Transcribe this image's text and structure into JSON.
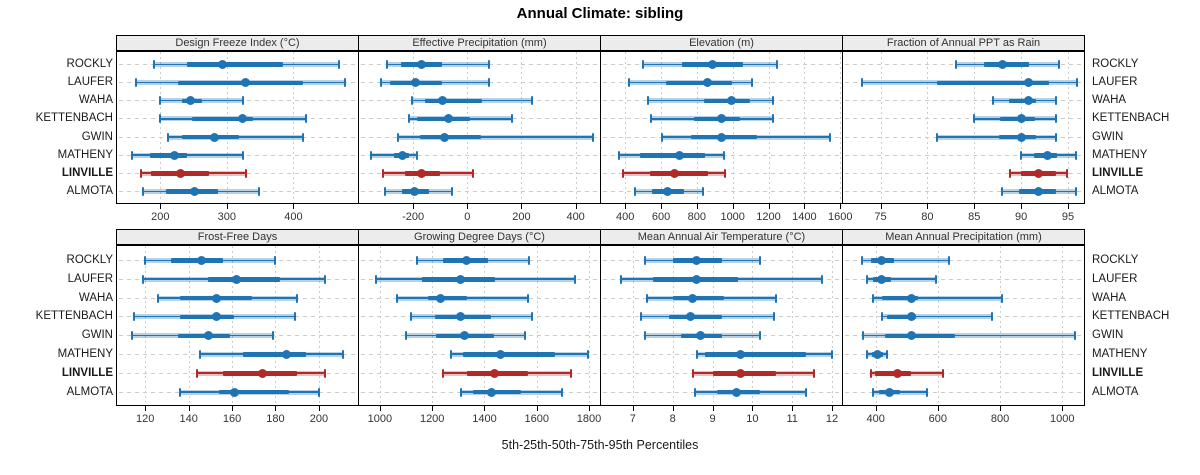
{
  "title": "Annual Climate: sibling",
  "caption": "5th-25th-50th-75th-95th Percentiles",
  "colors": {
    "primary": "#1f74b4",
    "primary_light": "rgba(31,116,180,0.32)",
    "highlight": "#b02a27",
    "highlight_light": "rgba(176,42,39,0.30)",
    "grid": "#cccccc",
    "strip_bg": "#ececec",
    "border": "#000000"
  },
  "chart_data": {
    "type": "dotplot-interval",
    "title": "Annual Climate: sibling",
    "caption": "5th-25th-50th-75th-95th Percentiles",
    "percentiles": [
      5,
      25,
      50,
      75,
      95
    ],
    "legend_position": "none",
    "grid": "on",
    "sites": [
      "ROCKLY",
      "LAUFER",
      "WAHA",
      "KETTENBACH",
      "GWIN",
      "MATHENY",
      "LINVILLE",
      "ALMOTA"
    ],
    "highlight_site": "LINVILLE",
    "panels": [
      {
        "title": "Design Freeze Index (°C)",
        "row": 0,
        "col": 0,
        "ticks": [
          200,
          300,
          400
        ],
        "xlim": [
          135,
          497
        ],
        "values": [
          [
            190,
            240,
            293,
            384,
            468
          ],
          [
            164,
            226,
            328,
            414,
            477
          ],
          [
            199,
            233,
            245,
            262,
            324
          ],
          [
            199,
            247,
            323,
            340,
            419
          ],
          [
            212,
            232,
            281,
            319,
            415
          ],
          [
            157,
            184,
            221,
            240,
            325
          ],
          [
            171,
            186,
            230,
            273,
            329
          ],
          [
            174,
            209,
            251,
            286,
            348
          ]
        ]
      },
      {
        "title": "Effective Precipitation (mm)",
        "row": 0,
        "col": 1,
        "ticks": [
          -200,
          0,
          200,
          400
        ],
        "xlim": [
          -400,
          490
        ],
        "values": [
          [
            -295,
            -245,
            -170,
            -95,
            80
          ],
          [
            -320,
            -285,
            -190,
            -95,
            80
          ],
          [
            -205,
            -155,
            -90,
            55,
            240
          ],
          [
            -215,
            -185,
            -70,
            10,
            165
          ],
          [
            -255,
            -175,
            -85,
            50,
            465
          ],
          [
            -355,
            -270,
            -240,
            -215,
            -185
          ],
          [
            -310,
            -230,
            -170,
            -100,
            20
          ],
          [
            -305,
            -240,
            -195,
            -140,
            -55
          ]
        ]
      },
      {
        "title": "Elevation (m)",
        "row": 0,
        "col": 2,
        "ticks": [
          400,
          600,
          800,
          1000,
          1200,
          1400,
          1600
        ],
        "xlim": [
          265,
          1610
        ],
        "values": [
          [
            500,
            715,
            885,
            1055,
            1250
          ],
          [
            420,
            630,
            860,
            995,
            1105
          ],
          [
            530,
            840,
            995,
            1095,
            1225
          ],
          [
            545,
            785,
            940,
            1040,
            1225
          ],
          [
            605,
            770,
            940,
            1135,
            1545
          ],
          [
            365,
            480,
            705,
            845,
            950
          ],
          [
            385,
            540,
            675,
            860,
            955
          ],
          [
            455,
            550,
            635,
            730,
            835
          ]
        ]
      },
      {
        "title": "Fraction of Annual PPT as Rain",
        "row": 0,
        "col": 3,
        "ticks": [
          75,
          80,
          85,
          90,
          95
        ],
        "xlim": [
          71,
          96.7
        ],
        "values": [
          [
            83,
            86,
            88,
            90.8,
            94
          ],
          [
            73,
            81,
            90.8,
            93,
            96
          ],
          [
            87,
            88.7,
            90.8,
            91.6,
            93.7
          ],
          [
            85,
            87.7,
            90,
            91.5,
            93.7
          ],
          [
            81,
            87.6,
            90,
            91.6,
            93.7
          ],
          [
            90,
            91.4,
            92.8,
            93.8,
            95.8
          ],
          [
            88.8,
            90,
            91.8,
            93.7,
            94.9
          ],
          [
            88,
            89.8,
            91.8,
            93.7,
            95.8
          ]
        ]
      },
      {
        "title": "Frost-Free Days",
        "row": 1,
        "col": 0,
        "ticks": [
          120,
          140,
          160,
          180,
          200
        ],
        "xlim": [
          107,
          218
        ],
        "values": [
          [
            120,
            132,
            146,
            156,
            180
          ],
          [
            119,
            149,
            162,
            182,
            203
          ],
          [
            126,
            136,
            153,
            169,
            190
          ],
          [
            115,
            136,
            153,
            161,
            189
          ],
          [
            114,
            135,
            149,
            159,
            179
          ],
          [
            145,
            165,
            185,
            194,
            211
          ],
          [
            144,
            156,
            174,
            190,
            203
          ],
          [
            136,
            154,
            161,
            186,
            200
          ]
        ]
      },
      {
        "title": "Growing Degree Days (°C)",
        "row": 1,
        "col": 1,
        "ticks": [
          1000,
          1200,
          1400,
          1600,
          1800
        ],
        "xlim": [
          920,
          1842
        ],
        "values": [
          [
            1140,
            1240,
            1333,
            1415,
            1570
          ],
          [
            985,
            1160,
            1308,
            1440,
            1745
          ],
          [
            1065,
            1185,
            1230,
            1335,
            1565
          ],
          [
            1118,
            1210,
            1310,
            1425,
            1580
          ],
          [
            1100,
            1215,
            1325,
            1435,
            1555
          ],
          [
            1273,
            1316,
            1463,
            1670,
            1795
          ],
          [
            1240,
            1335,
            1440,
            1565,
            1730
          ],
          [
            1310,
            1358,
            1425,
            1540,
            1695
          ]
        ]
      },
      {
        "title": "Mean Annual Air Temperature (°C)",
        "row": 1,
        "col": 2,
        "ticks": [
          7,
          8,
          9,
          10,
          11,
          12
        ],
        "xlim": [
          6.2,
          12.25
        ],
        "values": [
          [
            7.3,
            8.0,
            8.6,
            9.25,
            10.2
          ],
          [
            6.7,
            7.5,
            8.6,
            9.65,
            11.75
          ],
          [
            7.35,
            8.0,
            8.5,
            9.3,
            10.6
          ],
          [
            7.2,
            7.9,
            8.45,
            9.25,
            10.55
          ],
          [
            7.3,
            8.2,
            8.7,
            9.25,
            10.2
          ],
          [
            8.6,
            8.8,
            9.7,
            11.35,
            12.0
          ],
          [
            8.5,
            9.0,
            9.7,
            10.6,
            11.55
          ],
          [
            8.55,
            9.1,
            9.6,
            10.2,
            11.35
          ]
        ]
      },
      {
        "title": "Mean Annual Precipitation (mm)",
        "row": 1,
        "col": 3,
        "ticks": [
          400,
          600,
          800,
          1000
        ],
        "xlim": [
          295,
          1070
        ],
        "values": [
          [
            357,
            385,
            420,
            460,
            635
          ],
          [
            373,
            390,
            420,
            450,
            595
          ],
          [
            390,
            420,
            515,
            535,
            805
          ],
          [
            420,
            435,
            515,
            530,
            775
          ],
          [
            360,
            430,
            515,
            655,
            1040
          ],
          [
            373,
            388,
            405,
            424,
            438
          ],
          [
            385,
            398,
            470,
            515,
            615
          ],
          [
            390,
            412,
            443,
            478,
            565
          ]
        ]
      }
    ]
  }
}
